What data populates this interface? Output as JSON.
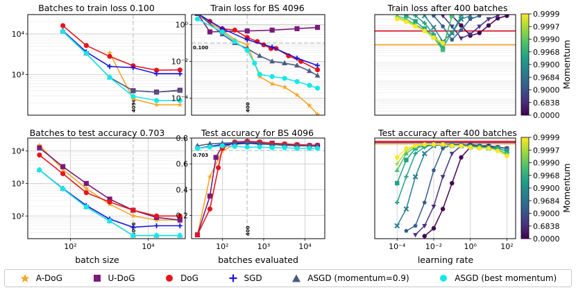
{
  "colors": {
    "adog": "#f5a623",
    "udog": "#7a1a7a",
    "dog": "#e8141c",
    "sgd": "#1515e0",
    "asgd_09": "#4a5a80",
    "asgd_best": "#15e8e8",
    "viridis": [
      "#440154",
      "#46327e",
      "#365c8d",
      "#277f8e",
      "#1fa187",
      "#4ac16d",
      "#a0da39",
      "#fde725"
    ]
  },
  "legend": [
    {
      "key": "adog",
      "label": "A-DoG",
      "marker": "star"
    },
    {
      "key": "udog",
      "label": "U-DoG",
      "marker": "square"
    },
    {
      "key": "dog",
      "label": "DoG",
      "marker": "circle"
    },
    {
      "key": "sgd",
      "label": "SGD",
      "marker": "plus"
    },
    {
      "key": "asgd_09",
      "label": "ASGD (momentum=0.9)",
      "marker": "triangle"
    },
    {
      "key": "asgd_best",
      "label": "ASGD (best momentum)",
      "marker": "circle"
    }
  ],
  "colorbar": {
    "label": "Momentum",
    "ticks": [
      "0.9999",
      "0.9997",
      "0.9990",
      "0.9968",
      "0.9900",
      "0.9684",
      "0.9000",
      "0.6838",
      "0.0000"
    ]
  },
  "chart_data": [
    {
      "id": "p1",
      "type": "line",
      "title": "Batches to train loss 0.100",
      "xscale": "log",
      "yscale": "log",
      "xlim": [
        8,
        90000
      ],
      "ylim": [
        100,
        30000
      ],
      "xticks": [],
      "yticks": [
        {
          "v": 1000,
          "label": "10³"
        },
        {
          "v": 10000,
          "label": "10⁴"
        }
      ],
      "vline": {
        "x": 4096,
        "label": "4096"
      },
      "x": [
        64,
        256,
        1024,
        4096,
        16384,
        65536
      ],
      "series": [
        {
          "key": "adog",
          "values": [
            null,
            null,
            3400,
            250,
            180,
            180
          ]
        },
        {
          "key": "udog",
          "values": [
            null,
            null,
            null,
            400,
            370,
            410
          ]
        },
        {
          "key": "dog",
          "values": [
            16000,
            5200,
            2800,
            1650,
            1280,
            1300
          ]
        },
        {
          "key": "sgd",
          "values": [
            12000,
            3600,
            1580,
            1480,
            1050,
            1050
          ]
        },
        {
          "key": "asgd_09",
          "values": [
            11500,
            3300,
            850,
            400,
            370,
            400
          ]
        },
        {
          "key": "asgd_best",
          "values": [
            11500,
            3300,
            850,
            290,
            230,
            230
          ]
        }
      ]
    },
    {
      "id": "p2",
      "type": "line",
      "title": "Train loss for BS 4096",
      "xscale": "log",
      "yscale": "log",
      "xlim": [
        18,
        30000
      ],
      "ylim": [
        1.2e-05,
        3.5
      ],
      "xticks": [],
      "yticks": [
        {
          "v": 0.0001,
          "label": "10⁻⁴"
        },
        {
          "v": 0.01,
          "label": "10⁻²"
        },
        {
          "v": 1,
          "label": "10⁰"
        }
      ],
      "hline": {
        "y": 0.1,
        "label": "0.100"
      },
      "vline": {
        "x": 400,
        "label": "400"
      },
      "series": [
        {
          "key": "adog",
          "x": [
            25,
            50,
            100,
            200,
            400,
            800,
            1600,
            3200,
            6400,
            12800,
            20000
          ],
          "y": [
            4,
            1.2,
            0.5,
            0.15,
            0.08,
            0.0015,
            0.0006,
            0.0004,
            0.00015,
            4e-05,
            1.3e-05
          ]
        },
        {
          "key": "udog",
          "x": [
            25,
            50,
            100,
            400,
            1600,
            6400,
            20000
          ],
          "y": [
            4,
            0.4,
            0.42,
            0.45,
            0.5,
            0.6,
            0.7
          ]
        },
        {
          "key": "dog",
          "x": [
            25,
            50,
            100,
            200,
            400,
            700,
            1000,
            1500,
            2000,
            4000,
            8000,
            20000
          ],
          "y": [
            4,
            1.5,
            0.6,
            0.5,
            0.2,
            0.12,
            0.08,
            0.05,
            0.05,
            0.02,
            0.01,
            0.0035
          ]
        },
        {
          "key": "sgd",
          "x": [
            25,
            100,
            400,
            1600,
            6400,
            20000
          ],
          "y": [
            4,
            0.6,
            0.15,
            0.06,
            0.015,
            0.006
          ]
        },
        {
          "key": "asgd_09",
          "x": [
            25,
            100,
            200,
            400,
            800,
            1600,
            3200,
            6400,
            12800,
            20000
          ],
          "y": [
            4,
            0.3,
            0.1,
            0.05,
            0.02,
            0.01,
            0.008,
            0.006,
            0.003,
            0.0017
          ]
        },
        {
          "key": "asgd_best",
          "x": [
            25,
            100,
            200,
            400,
            600,
            800,
            1600,
            3200,
            6400,
            12800,
            20000
          ],
          "y": [
            2,
            0.4,
            0.12,
            0.04,
            0.008,
            0.002,
            0.0015,
            0.0012,
            0.0008,
            0.0005,
            0.00035
          ]
        }
      ]
    },
    {
      "id": "p3",
      "type": "line",
      "title": "Train loss after 400 batches",
      "xscale": "log",
      "yscale": "log",
      "xlim": [
        6e-06,
        300
      ],
      "ylim": [
        1.2e-05,
        3.5
      ],
      "xticks": [],
      "yticks": [],
      "hlines": [
        {
          "key": "adog",
          "y": 0.08
        },
        {
          "key": "udog",
          "y": 0.45
        },
        {
          "key": "dog",
          "y": 0.45
        }
      ],
      "lr": [
        0.0001,
        0.000316,
        0.001,
        0.00316,
        0.01,
        0.0316,
        0.1,
        0.316,
        1,
        3.16,
        10,
        31.6,
        100
      ],
      "momentum_series": [
        {
          "m": 0.0,
          "y": [
            null,
            null,
            null,
            null,
            null,
            null,
            3.0,
            0.9,
            0.25,
            0.35,
            0.9,
            2.2,
            3.0
          ]
        },
        {
          "m": 0.6838,
          "y": [
            null,
            null,
            null,
            null,
            null,
            3.0,
            0.8,
            0.18,
            0.3,
            0.8,
            2.0,
            3.0,
            null
          ]
        },
        {
          "m": 0.9,
          "y": [
            null,
            null,
            null,
            null,
            3.0,
            0.8,
            0.15,
            0.5,
            2.0,
            3.0,
            null,
            null,
            null
          ]
        },
        {
          "m": 0.9684,
          "y": [
            null,
            null,
            null,
            3.0,
            0.7,
            0.12,
            0.35,
            2.0,
            3.0,
            null,
            null,
            null,
            null
          ]
        },
        {
          "m": 0.99,
          "y": [
            null,
            null,
            3.0,
            1.2,
            0.3,
            0.06,
            0.35,
            3.0,
            null,
            null,
            null,
            null,
            null
          ]
        },
        {
          "m": 0.9968,
          "y": [
            null,
            3.0,
            1.5,
            0.6,
            0.25,
            0.05,
            3.0,
            null,
            null,
            null,
            null,
            null,
            null
          ]
        },
        {
          "m": 0.999,
          "y": [
            3.0,
            2.0,
            1.0,
            0.5,
            0.2,
            0.04,
            3.0,
            null,
            null,
            null,
            null,
            null,
            null
          ]
        },
        {
          "m": 0.9997,
          "y": [
            2.5,
            1.6,
            0.9,
            0.45,
            0.18,
            0.08,
            null,
            null,
            null,
            null,
            null,
            null,
            null
          ]
        },
        {
          "m": 0.9999,
          "y": [
            2.0,
            1.4,
            0.8,
            0.45,
            0.2,
            0.1,
            null,
            null,
            null,
            null,
            null,
            null,
            null
          ]
        }
      ]
    },
    {
      "id": "p4",
      "type": "line",
      "title": "Batches to test accuracy 0.703",
      "xscale": "log",
      "yscale": "log",
      "xlim": [
        8,
        90000
      ],
      "ylim": [
        20,
        25000
      ],
      "xticks": [
        {
          "v": 100,
          "label": "10²"
        },
        {
          "v": 10000,
          "label": "10⁴"
        }
      ],
      "xlabel": "batch size",
      "yticks": [
        {
          "v": 100,
          "label": "10²"
        },
        {
          "v": 1000,
          "label": "10³"
        },
        {
          "v": 10000,
          "label": "10⁴"
        }
      ],
      "vline": {
        "x": 4096,
        "label": "4096"
      },
      "x": [
        16,
        64,
        256,
        1024,
        4096,
        16384,
        65536
      ],
      "series": [
        {
          "key": "adog",
          "values": [
            15000,
            2700,
            700,
            230,
            100,
            75,
            75
          ]
        },
        {
          "key": "udog",
          "values": [
            12500,
            3300,
            1000,
            330,
            150,
            90,
            75
          ]
        },
        {
          "key": "dog",
          "values": [
            7500,
            2000,
            520,
            270,
            150,
            100,
            100
          ]
        },
        {
          "key": "sgd",
          "values": [
            2600,
            700,
            210,
            80,
            45,
            50,
            50
          ]
        },
        {
          "key": "asgd_09",
          "values": [
            2600,
            680,
            190,
            70,
            25,
            25,
            25
          ]
        },
        {
          "key": "asgd_best",
          "values": [
            2600,
            680,
            190,
            70,
            25,
            25,
            25
          ]
        }
      ]
    },
    {
      "id": "p5",
      "type": "line",
      "title": "Test accuracy for BS 4096",
      "xscale": "log",
      "yscale": "linear",
      "xlim": [
        18,
        30000
      ],
      "ylim": [
        0.02,
        0.8
      ],
      "xticks": [
        {
          "v": 100,
          "label": "10²"
        },
        {
          "v": 1000,
          "label": "10³"
        },
        {
          "v": 10000,
          "label": "10⁴"
        }
      ],
      "xlabel": "batches evaluated",
      "yticks": [
        {
          "v": 0.2,
          "label": "0.2"
        },
        {
          "v": 0.4,
          "label": "0.4"
        },
        {
          "v": 0.6,
          "label": "0.6"
        },
        {
          "v": 0.8,
          "label": "0.8"
        }
      ],
      "hline": {
        "y": 0.703,
        "label": "0.703"
      },
      "vline": {
        "x": 400,
        "label": "400"
      },
      "series": [
        {
          "key": "adog",
          "x": [
            25,
            50,
            100,
            200,
            400,
            800,
            1600,
            3200,
            6400,
            12800,
            20000
          ],
          "y": [
            0.05,
            0.5,
            0.7,
            0.75,
            0.76,
            0.755,
            0.75,
            0.745,
            0.745,
            0.74,
            0.74
          ]
        },
        {
          "key": "udog",
          "x": [
            25,
            50,
            70,
            100,
            200,
            400,
            800,
            1600,
            3200,
            6400,
            12800,
            20000
          ],
          "y": [
            0.05,
            0.35,
            0.65,
            0.74,
            0.76,
            0.77,
            0.765,
            0.76,
            0.75,
            0.745,
            0.74,
            0.74
          ]
        },
        {
          "key": "dog",
          "x": [
            25,
            50,
            80,
            100,
            200,
            400,
            800,
            1600,
            3200,
            6400,
            12800,
            20000
          ],
          "y": [
            0.05,
            0.25,
            0.57,
            0.72,
            0.77,
            0.775,
            0.77,
            0.76,
            0.755,
            0.75,
            0.745,
            0.745
          ]
        },
        {
          "key": "sgd",
          "x": [
            25,
            100,
            400,
            1600,
            6400,
            20000
          ],
          "y": [
            0.72,
            0.75,
            0.76,
            0.75,
            0.74,
            0.74
          ]
        },
        {
          "key": "asgd_09",
          "x": [
            25,
            50,
            100,
            200,
            400,
            800,
            1600,
            3200,
            6400,
            12800,
            20000
          ],
          "y": [
            0.74,
            0.755,
            0.76,
            0.765,
            0.77,
            0.76,
            0.75,
            0.745,
            0.74,
            0.74,
            0.735
          ]
        },
        {
          "key": "asgd_best",
          "x": [
            25,
            50,
            100,
            200,
            400,
            800,
            1600,
            3200,
            6400,
            12800,
            20000
          ],
          "y": [
            0.72,
            0.73,
            0.74,
            0.735,
            0.73,
            0.73,
            0.725,
            0.725,
            0.72,
            0.72,
            0.72
          ]
        }
      ]
    },
    {
      "id": "p6",
      "type": "line",
      "title": "Test accuracy after 400 batches",
      "xscale": "log",
      "yscale": "linear",
      "xlim": [
        6e-06,
        300
      ],
      "ylim": [
        0.02,
        0.8
      ],
      "xticks": [
        {
          "v": 0.0001,
          "label": "10⁻⁴"
        },
        {
          "v": 0.01,
          "label": "10⁻²"
        },
        {
          "v": 1,
          "label": "10⁰"
        },
        {
          "v": 100,
          "label": "10²"
        }
      ],
      "xlabel": "learning rate",
      "yticks": [],
      "hlines": [
        {
          "key": "adog",
          "y": 0.755
        },
        {
          "key": "udog",
          "y": 0.765
        },
        {
          "key": "dog",
          "y": 0.775
        }
      ],
      "lr": [
        0.0001,
        0.000316,
        0.001,
        0.00316,
        0.01,
        0.0316,
        0.1,
        0.316,
        1,
        3.16,
        10,
        31.6,
        100
      ],
      "momentum_series": [
        {
          "m": 0.0,
          "y": [
            null,
            null,
            null,
            0.04,
            0.1,
            0.25,
            0.45,
            0.65,
            0.73,
            0.74,
            0.74,
            0.73,
            0.72
          ]
        },
        {
          "m": 0.6838,
          "y": [
            null,
            null,
            0.05,
            0.12,
            0.27,
            0.5,
            0.68,
            0.74,
            0.75,
            0.74,
            0.74,
            0.73,
            0.72
          ]
        },
        {
          "m": 0.9,
          "y": [
            null,
            0.08,
            0.12,
            0.3,
            0.55,
            0.72,
            0.75,
            0.75,
            0.74,
            0.74,
            0.73,
            0.73,
            0.72
          ]
        },
        {
          "m": 0.9684,
          "y": [
            0.12,
            0.25,
            0.5,
            0.68,
            0.74,
            0.75,
            0.75,
            0.74,
            0.74,
            0.73,
            0.73,
            0.72,
            0.7
          ]
        },
        {
          "m": 0.99,
          "y": [
            0.3,
            0.5,
            0.68,
            0.73,
            0.75,
            0.75,
            0.74,
            0.74,
            0.73,
            0.73,
            0.72,
            0.72,
            0.7
          ]
        },
        {
          "m": 0.9968,
          "y": [
            0.45,
            0.63,
            0.72,
            0.74,
            0.75,
            0.75,
            0.74,
            0.74,
            0.73,
            0.73,
            0.72,
            0.72,
            0.7
          ]
        },
        {
          "m": 0.999,
          "y": [
            0.55,
            0.68,
            0.73,
            0.75,
            0.75,
            0.75,
            0.74,
            0.74,
            0.73,
            0.73,
            0.72,
            0.71,
            0.68
          ]
        },
        {
          "m": 0.9997,
          "y": [
            0.6,
            0.7,
            0.74,
            0.75,
            0.75,
            0.75,
            0.74,
            0.74,
            0.73,
            0.72,
            0.72,
            0.7,
            0.67
          ]
        },
        {
          "m": 0.9999,
          "y": [
            0.65,
            0.72,
            0.74,
            0.75,
            0.75,
            0.75,
            0.74,
            0.74,
            0.73,
            0.72,
            0.72,
            0.7,
            0.66
          ]
        }
      ]
    }
  ]
}
